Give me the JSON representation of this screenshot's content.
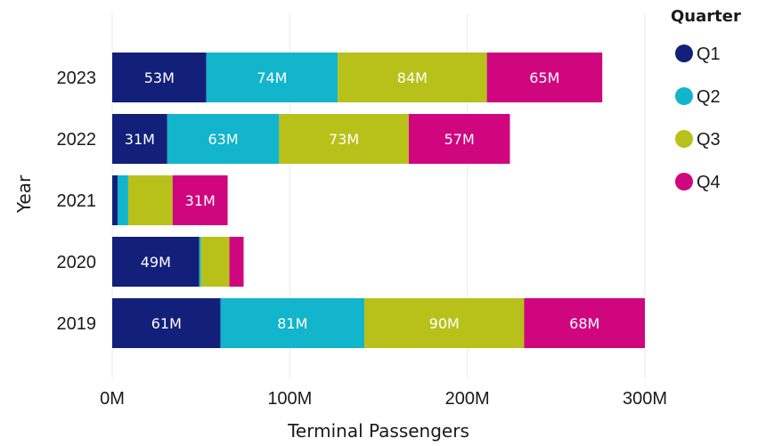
{
  "chart_data": {
    "type": "bar",
    "orientation": "horizontal",
    "stacked": true,
    "xlabel": "Terminal Passengers",
    "ylabel": "Year",
    "xlim": [
      0,
      300
    ],
    "x_ticks": [
      0,
      100,
      200,
      300
    ],
    "x_tick_labels": [
      "0M",
      "100M",
      "200M",
      "300M"
    ],
    "grid": "vertical",
    "categories": [
      "2023",
      "2022",
      "2021",
      "2020",
      "2019"
    ],
    "legend": {
      "title": "Quarter",
      "position": "right"
    },
    "series": [
      {
        "name": "Q1",
        "color": "#12207a",
        "values": [
          53,
          31,
          3,
          49,
          61
        ],
        "labels": [
          "53M",
          "31M",
          "",
          "49M",
          "61M"
        ]
      },
      {
        "name": "Q2",
        "color": "#12b5cb",
        "values": [
          74,
          63,
          6,
          1,
          81
        ],
        "labels": [
          "74M",
          "63M",
          "",
          "",
          "81M"
        ]
      },
      {
        "name": "Q3",
        "color": "#b8c11a",
        "values": [
          84,
          73,
          25,
          16,
          90
        ],
        "labels": [
          "84M",
          "73M",
          "",
          "",
          "90M"
        ]
      },
      {
        "name": "Q4",
        "color": "#d0067f",
        "values": [
          65,
          57,
          31,
          8,
          68
        ],
        "labels": [
          "65M",
          "57M",
          "31M",
          "",
          "68M"
        ]
      }
    ]
  }
}
